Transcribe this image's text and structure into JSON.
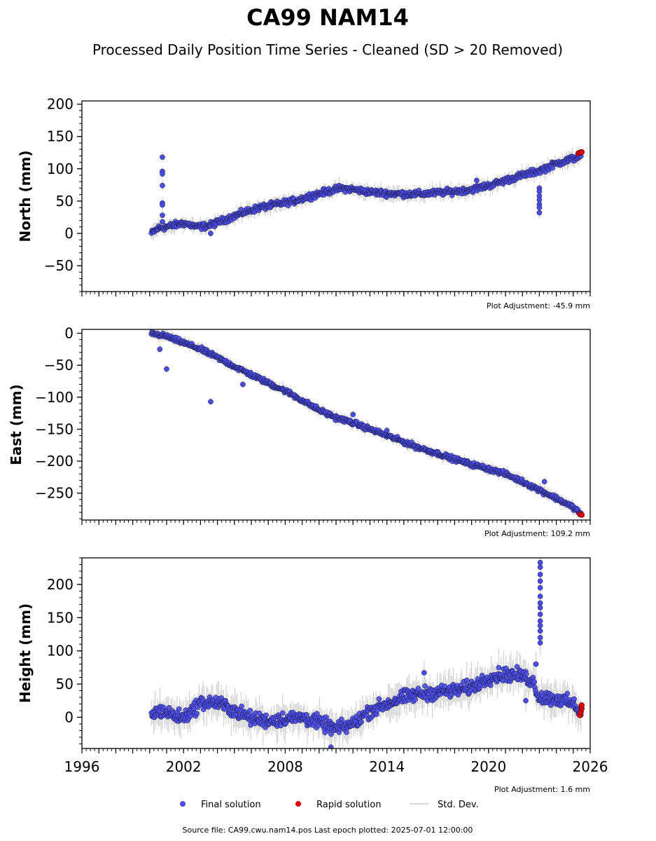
{
  "title": "CA99 NAM14",
  "subtitle": "Processed Daily Position Time Series - Cleaned (SD > 20 Removed)",
  "colors": {
    "final": "#4b4be6",
    "rapid": "#e00000",
    "stddev": "#c8c8c8",
    "marker_edge": "#1a1a3a"
  },
  "legend": {
    "final_label": "Final solution",
    "rapid_label": "Rapid solution",
    "stddev_label": "Std. Dev."
  },
  "footer": "Source file: CA99.cwu.nam14.pos  Last epoch plotted: 2025-07-01 12:00:00",
  "chart_data": [
    {
      "type": "scatter",
      "ylabel": "North (mm)",
      "adjustment": "Plot Adjustment: -45.9 mm",
      "xlim": [
        1996,
        2026
      ],
      "ylim": [
        -90,
        205
      ],
      "yticks": [
        -50,
        0,
        50,
        100,
        150,
        200
      ],
      "xticks": [
        1996,
        2002,
        2008,
        2014,
        2020,
        2026
      ],
      "show_xticklabels": false,
      "final_trend": [
        [
          2000.1,
          0
        ],
        [
          2000.5,
          8
        ],
        [
          2001.0,
          10
        ],
        [
          2002.0,
          16
        ],
        [
          2002.8,
          10
        ],
        [
          2003.5,
          12
        ],
        [
          2004.5,
          22
        ],
        [
          2005.5,
          32
        ],
        [
          2006.5,
          40
        ],
        [
          2007.5,
          45
        ],
        [
          2008.5,
          50
        ],
        [
          2009.5,
          58
        ],
        [
          2010.5,
          65
        ],
        [
          2011.3,
          70
        ],
        [
          2012.0,
          68
        ],
        [
          2013.0,
          64
        ],
        [
          2014.0,
          62
        ],
        [
          2015.0,
          61
        ],
        [
          2016.0,
          61
        ],
        [
          2017.0,
          63
        ],
        [
          2018.0,
          65
        ],
        [
          2019.0,
          68
        ],
        [
          2020.0,
          74
        ],
        [
          2021.0,
          82
        ],
        [
          2022.0,
          90
        ],
        [
          2023.0,
          97
        ],
        [
          2024.0,
          108
        ],
        [
          2025.0,
          116
        ],
        [
          2025.45,
          120
        ]
      ],
      "noise": 4,
      "outliers": [
        [
          2000.75,
          118
        ],
        [
          2000.75,
          96
        ],
        [
          2000.75,
          92
        ],
        [
          2000.75,
          74
        ],
        [
          2000.75,
          47
        ],
        [
          2000.75,
          44
        ],
        [
          2000.75,
          28
        ],
        [
          2000.75,
          18
        ],
        [
          2003.6,
          0
        ],
        [
          2023.0,
          70
        ],
        [
          2023.0,
          65
        ],
        [
          2023.0,
          58
        ],
        [
          2023.0,
          52
        ],
        [
          2023.0,
          45
        ],
        [
          2023.0,
          40
        ],
        [
          2023.0,
          32
        ],
        [
          2019.3,
          82
        ]
      ],
      "rapid_points": [
        [
          2025.3,
          124
        ],
        [
          2025.4,
          125
        ],
        [
          2025.5,
          126
        ]
      ]
    },
    {
      "type": "scatter",
      "ylabel": "East (mm)",
      "adjustment": "Plot Adjustment: 109.2 mm",
      "xlim": [
        1996,
        2026
      ],
      "ylim": [
        -292,
        6
      ],
      "yticks": [
        -250,
        -200,
        -150,
        -100,
        -50,
        0
      ],
      "xticks": [
        1996,
        2002,
        2008,
        2014,
        2020,
        2026
      ],
      "show_xticklabels": false,
      "final_trend": [
        [
          2000.1,
          0
        ],
        [
          2001.0,
          -5
        ],
        [
          2002.0,
          -15
        ],
        [
          2003.0,
          -25
        ],
        [
          2004.0,
          -38
        ],
        [
          2005.0,
          -52
        ],
        [
          2006.0,
          -65
        ],
        [
          2007.0,
          -78
        ],
        [
          2008.0,
          -90
        ],
        [
          2009.0,
          -105
        ],
        [
          2010.0,
          -120
        ],
        [
          2011.0,
          -132
        ],
        [
          2012.0,
          -140
        ],
        [
          2013.0,
          -150
        ],
        [
          2014.0,
          -160
        ],
        [
          2015.0,
          -170
        ],
        [
          2016.0,
          -180
        ],
        [
          2017.0,
          -188
        ],
        [
          2018.0,
          -197
        ],
        [
          2019.0,
          -205
        ],
        [
          2020.0,
          -212
        ],
        [
          2021.0,
          -220
        ],
        [
          2022.0,
          -232
        ],
        [
          2023.0,
          -245
        ],
        [
          2024.0,
          -258
        ],
        [
          2025.0,
          -272
        ],
        [
          2025.45,
          -282
        ]
      ],
      "noise": 3,
      "outliers": [
        [
          2000.6,
          -25
        ],
        [
          2001.0,
          -56
        ],
        [
          2003.6,
          -107
        ],
        [
          2005.5,
          -80
        ],
        [
          2012.0,
          -127
        ],
        [
          2014.0,
          -152
        ],
        [
          2023.3,
          -232
        ]
      ],
      "rapid_points": [
        [
          2025.4,
          -283
        ],
        [
          2025.5,
          -284
        ]
      ]
    },
    {
      "type": "scatter",
      "ylabel": "Height (mm)",
      "adjustment": "Plot Adjustment: 1.6 mm",
      "xlim": [
        1996,
        2026
      ],
      "ylim": [
        -47,
        240
      ],
      "yticks": [
        0,
        50,
        100,
        150,
        200
      ],
      "xticks": [
        1996,
        2002,
        2008,
        2014,
        2020,
        2026
      ],
      "show_xticklabels": true,
      "final_trend": [
        [
          2000.1,
          5
        ],
        [
          2000.7,
          10
        ],
        [
          2001.5,
          2
        ],
        [
          2002.0,
          0
        ],
        [
          2002.5,
          10
        ],
        [
          2003.0,
          22
        ],
        [
          2004.0,
          22
        ],
        [
          2005.0,
          10
        ],
        [
          2006.0,
          -2
        ],
        [
          2007.0,
          -5
        ],
        [
          2008.0,
          -2
        ],
        [
          2009.0,
          0
        ],
        [
          2010.0,
          -8
        ],
        [
          2011.0,
          -18
        ],
        [
          2012.0,
          -10
        ],
        [
          2013.0,
          10
        ],
        [
          2014.0,
          20
        ],
        [
          2015.0,
          30
        ],
        [
          2016.0,
          35
        ],
        [
          2017.0,
          38
        ],
        [
          2018.0,
          40
        ],
        [
          2019.0,
          45
        ],
        [
          2020.0,
          60
        ],
        [
          2021.0,
          65
        ],
        [
          2022.0,
          62
        ],
        [
          2022.6,
          55
        ],
        [
          2023.0,
          30
        ],
        [
          2024.0,
          28
        ],
        [
          2025.0,
          20
        ],
        [
          2025.45,
          8
        ]
      ],
      "noise": 9,
      "outliers": [
        [
          2023.05,
          233
        ],
        [
          2023.05,
          226
        ],
        [
          2023.05,
          215
        ],
        [
          2023.05,
          205
        ],
        [
          2023.05,
          195
        ],
        [
          2023.05,
          182
        ],
        [
          2023.05,
          172
        ],
        [
          2023.05,
          165
        ],
        [
          2023.05,
          155
        ],
        [
          2023.05,
          145
        ],
        [
          2023.05,
          138
        ],
        [
          2023.05,
          130
        ],
        [
          2023.05,
          120
        ],
        [
          2023.05,
          112
        ],
        [
          2022.8,
          80
        ],
        [
          2022.2,
          25
        ],
        [
          2016.2,
          67
        ],
        [
          2010.7,
          -45
        ]
      ],
      "rapid_points": [
        [
          2025.4,
          3
        ],
        [
          2025.45,
          8
        ],
        [
          2025.5,
          13
        ],
        [
          2025.5,
          18
        ]
      ]
    }
  ]
}
